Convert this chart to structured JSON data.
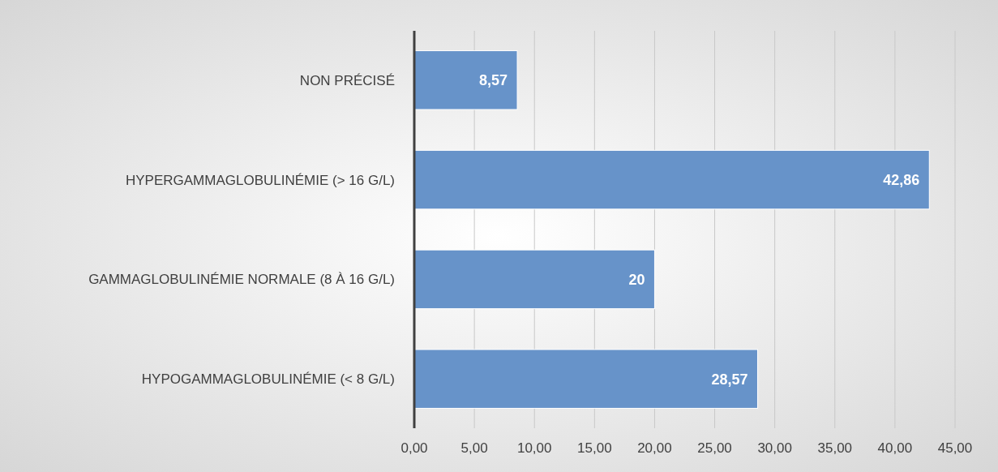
{
  "chart_data": {
    "type": "bar",
    "orientation": "horizontal",
    "categories": [
      "NON PRÉCISÉ",
      "HYPERGAMMAGLOBULINÉMIE (> 16 G/L)",
      "GAMMAGLOBULINÉMIE NORMALE (8 À 16 G/L)",
      "HYPOGAMMAGLOBULINÉMIE (< 8 G/L)"
    ],
    "values": [
      8.57,
      42.86,
      20,
      28.57
    ],
    "value_labels": [
      "8,57",
      "42,86",
      "20",
      "28,57"
    ],
    "color": "#6793c9",
    "xlim": [
      0,
      45
    ],
    "xticks": [
      {
        "value": 0,
        "label": "0,00"
      },
      {
        "value": 5,
        "label": "5,00"
      },
      {
        "value": 10,
        "label": "10,00"
      },
      {
        "value": 15,
        "label": "15,00"
      },
      {
        "value": 20,
        "label": "20,00"
      },
      {
        "value": 25,
        "label": "25,00"
      },
      {
        "value": 30,
        "label": "30,00"
      },
      {
        "value": 35,
        "label": "35,00"
      },
      {
        "value": 40,
        "label": "40,00"
      },
      {
        "value": 45,
        "label": "45,00"
      }
    ],
    "grid": "x"
  }
}
